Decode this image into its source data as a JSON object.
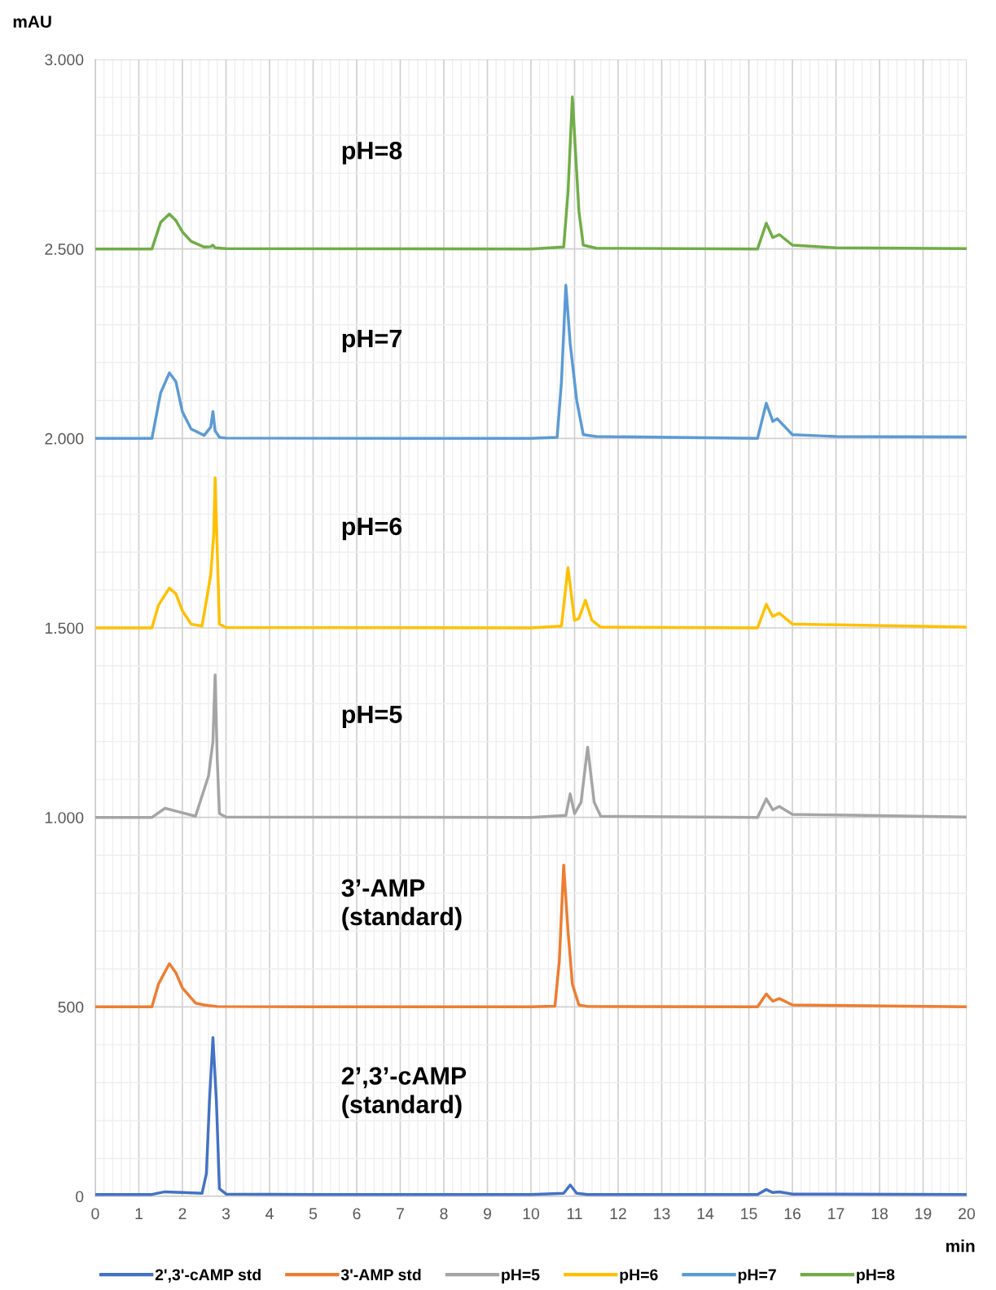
{
  "chart_data": {
    "type": "line",
    "xlabel": "min",
    "ylabel": "mAU",
    "xlim": [
      0,
      20
    ],
    "xticks": [
      0,
      1,
      2,
      3,
      4,
      5,
      6,
      7,
      8,
      9,
      10,
      11,
      12,
      13,
      14,
      15,
      16,
      17,
      18,
      19,
      20
    ],
    "ylim": [
      0,
      3000
    ],
    "yticks": [
      0,
      500,
      {
        "value": 1000,
        "label": "1.000"
      },
      {
        "value": 1500,
        "label": "1.500"
      },
      {
        "value": 2000,
        "label": "2.000"
      },
      {
        "value": 2500,
        "label": "2.500"
      },
      {
        "value": 3000,
        "label": "3.000"
      }
    ],
    "grid": true,
    "legend": "bottom",
    "marker": "none",
    "line_style": "solid",
    "series": [
      {
        "name": "2',3'-cAMP std",
        "color": "#4472c4",
        "x": [
          0,
          1.3,
          1.6,
          2.0,
          2.45,
          2.55,
          2.62,
          2.7,
          2.78,
          2.85,
          3.0,
          5,
          10,
          10.75,
          10.9,
          11.05,
          11.3,
          15.2,
          15.4,
          15.55,
          15.7,
          16,
          20
        ],
        "values": [
          5,
          5,
          12,
          10,
          8,
          60,
          250,
          419,
          250,
          20,
          6,
          5,
          5,
          8,
          30,
          8,
          5,
          5,
          18,
          10,
          12,
          6,
          5
        ]
      },
      {
        "name": "3'-AMP std",
        "color": "#ed7d31",
        "x": [
          0,
          1.3,
          1.45,
          1.7,
          1.85,
          2.0,
          2.3,
          2.5,
          2.8,
          5,
          10,
          10.55,
          10.65,
          10.75,
          10.85,
          10.95,
          11.1,
          11.3,
          15.2,
          15.4,
          15.55,
          15.7,
          16,
          20
        ],
        "values": [
          500,
          500,
          560,
          614,
          590,
          550,
          510,
          505,
          501,
          500,
          500,
          502,
          620,
          874,
          700,
          560,
          505,
          501,
          500,
          534,
          515,
          522,
          505,
          500
        ]
      },
      {
        "name": "pH=5",
        "color": "#a5a5a5",
        "x": [
          0,
          1.3,
          1.6,
          1.9,
          2.3,
          2.6,
          2.7,
          2.75,
          2.8,
          2.85,
          3.0,
          10,
          10.8,
          10.9,
          11.0,
          11.15,
          11.3,
          11.45,
          11.6,
          15.2,
          15.4,
          15.55,
          15.7,
          16,
          20
        ],
        "values": [
          1000,
          1000,
          1024,
          1015,
          1003,
          1110,
          1200,
          1376,
          1150,
          1010,
          1001,
          1000,
          1005,
          1062,
          1010,
          1040,
          1185,
          1040,
          1003,
          1000,
          1049,
          1020,
          1029,
          1008,
          1001
        ]
      },
      {
        "name": "pH=6",
        "color": "#ffc000",
        "x": [
          0,
          1.3,
          1.45,
          1.7,
          1.85,
          2.0,
          2.2,
          2.45,
          2.65,
          2.72,
          2.75,
          2.8,
          2.85,
          3.0,
          10,
          10.7,
          10.85,
          11.0,
          11.1,
          11.25,
          11.4,
          11.6,
          15.2,
          15.4,
          15.55,
          15.7,
          16,
          20
        ],
        "values": [
          1500,
          1500,
          1560,
          1605,
          1590,
          1545,
          1510,
          1505,
          1640,
          1750,
          1896,
          1700,
          1510,
          1501,
          1500,
          1505,
          1659,
          1520,
          1525,
          1573,
          1520,
          1502,
          1500,
          1562,
          1530,
          1539,
          1510,
          1502
        ]
      },
      {
        "name": "pH=7",
        "color": "#5b9bd5",
        "x": [
          0,
          1.3,
          1.5,
          1.7,
          1.85,
          2.0,
          2.2,
          2.5,
          2.65,
          2.7,
          2.75,
          2.85,
          3.0,
          10,
          10.6,
          10.7,
          10.8,
          10.9,
          11.05,
          11.2,
          11.5,
          15.2,
          15.4,
          15.55,
          15.65,
          16,
          17,
          20
        ],
        "values": [
          2000,
          2000,
          2120,
          2173,
          2150,
          2070,
          2025,
          2008,
          2030,
          2071,
          2020,
          2003,
          2001,
          2000,
          2003,
          2150,
          2404,
          2250,
          2100,
          2010,
          2005,
          2000,
          2093,
          2045,
          2052,
          2010,
          2005,
          2004
        ]
      },
      {
        "name": "pH=8",
        "color": "#70ad47",
        "x": [
          0,
          1.3,
          1.5,
          1.7,
          1.85,
          2.0,
          2.2,
          2.5,
          2.65,
          2.7,
          2.75,
          3.0,
          10,
          10.75,
          10.85,
          10.95,
          11.05,
          11.1,
          11.2,
          11.5,
          15.2,
          15.4,
          15.55,
          15.7,
          16,
          17,
          20
        ],
        "values": [
          2500,
          2500,
          2570,
          2592,
          2575,
          2545,
          2520,
          2505,
          2506,
          2510,
          2503,
          2501,
          2500,
          2505,
          2650,
          2901,
          2700,
          2600,
          2510,
          2502,
          2500,
          2568,
          2530,
          2538,
          2510,
          2503,
          2501
        ]
      }
    ],
    "annotations": [
      "pH=8",
      "pH=7",
      "pH=6",
      "pH=5",
      "3’-AMP\n(standard)",
      "2’,3’-cAMP\n(standard)"
    ]
  }
}
